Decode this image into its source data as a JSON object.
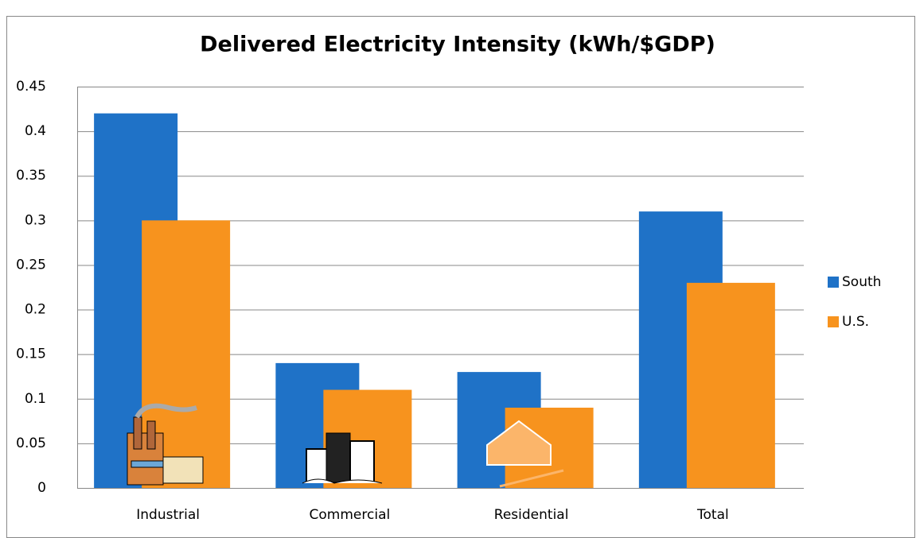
{
  "chart_data": {
    "type": "bar",
    "title": "Delivered Electricity Intensity (kWh/$GDP)",
    "categories": [
      "Industrial",
      "Commercial",
      "Residential",
      "Total"
    ],
    "series": [
      {
        "name": "South",
        "color": "#1f72c7",
        "values": [
          0.42,
          0.14,
          0.13,
          0.31
        ]
      },
      {
        "name": "U.S.",
        "color": "#f7931e",
        "values": [
          0.3,
          0.11,
          0.09,
          0.23
        ]
      }
    ],
    "ylim": [
      0,
      0.45
    ],
    "yticks": [
      0,
      0.05,
      0.1,
      0.15,
      0.2,
      0.25,
      0.3,
      0.35,
      0.4,
      0.45
    ],
    "grid": true,
    "legend": "right"
  }
}
